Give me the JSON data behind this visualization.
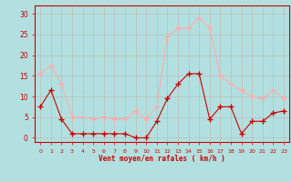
{
  "x": [
    0,
    1,
    2,
    3,
    4,
    5,
    6,
    7,
    8,
    9,
    10,
    11,
    12,
    13,
    14,
    15,
    16,
    17,
    18,
    19,
    20,
    21,
    22,
    23
  ],
  "wind_avg": [
    7.5,
    11.5,
    4.5,
    1,
    1,
    1,
    1,
    1,
    1,
    0,
    0,
    4,
    9.5,
    13,
    15.5,
    15.5,
    4.5,
    7.5,
    7.5,
    1,
    4,
    4,
    6,
    6.5
  ],
  "wind_gust": [
    15.5,
    17.5,
    13,
    5,
    5,
    4.5,
    5,
    4.5,
    4.5,
    6.5,
    4.5,
    7.5,
    24.5,
    26.5,
    26.5,
    29,
    26.5,
    15,
    13,
    11.5,
    10,
    9.5,
    11.5,
    9.5
  ],
  "avg_color": "#cc0000",
  "gust_color": "#ffaaaa",
  "bg_color": "#b2e0e0",
  "grid_color": "#bbbbbb",
  "xlabel": "Vent moyen/en rafales ( km/h )",
  "ylabel_ticks": [
    0,
    5,
    10,
    15,
    20,
    25,
    30
  ],
  "ylim": [
    -1,
    32
  ],
  "xlim": [
    -0.5,
    23.5
  ],
  "tick_color": "#cc0000",
  "label_color": "#cc0000",
  "spine_color": "#cc0000"
}
